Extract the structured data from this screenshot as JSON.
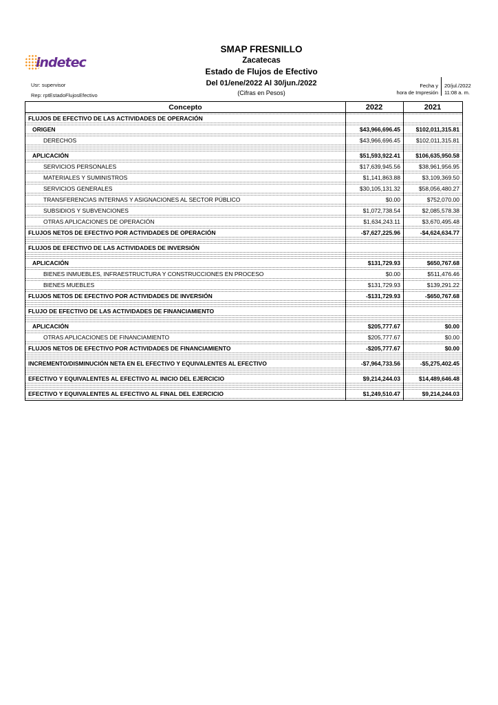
{
  "colors": {
    "logo_purple": "#662D91",
    "logo_orange": "#F7941D",
    "text": "#000000"
  },
  "logo": {
    "i": "i",
    "rest": "ndetec"
  },
  "header": {
    "usr": "Usr: supervisor",
    "rep": "Rep: rptEstadoFlujosEfectivo",
    "company": "SMAP FRESNILLO",
    "state": "Zacatecas",
    "report_title": "Estado de Flujos de Efectivo",
    "period": "Del 01/ene/2022 Al 30/jun./2022",
    "units": "(Cifras en Pesos)",
    "print_label_line1": "Fecha y",
    "print_label_line2": "hora de Impresión",
    "print_date": "20/jul./2022",
    "print_time": "11:08 a. m."
  },
  "table": {
    "col_concepto": "Concepto",
    "col_2022": "2022",
    "col_2021": "2021",
    "rows": [
      {
        "label": "FLUJOS DE EFECTIVO DE LAS ACTIVIDADES DE OPERACIÓN",
        "v2022": "",
        "v2021": "",
        "style": "section",
        "indent": 0
      },
      {
        "label": "ORIGEN",
        "v2022": "$43,966,696.45",
        "v2021": "$102,011,315.81",
        "style": "group",
        "indent": 1
      },
      {
        "label": "DERECHOS",
        "v2022": "$43,966,696.45",
        "v2021": "$102,011,315.81",
        "style": "item",
        "indent": 2
      },
      {
        "label": "",
        "v2022": "",
        "v2021": "",
        "style": "spacer",
        "indent": 0
      },
      {
        "label": "APLICACIÓN",
        "v2022": "$51,593,922.41",
        "v2021": "$106,635,950.58",
        "style": "group",
        "indent": 1
      },
      {
        "label": "SERVICIOS PERSONALES",
        "v2022": "$17,639,945.56",
        "v2021": "$38,961,956.95",
        "style": "item",
        "indent": 2
      },
      {
        "label": "MATERIALES Y SUMINISTROS",
        "v2022": "$1,141,863.88",
        "v2021": "$3,109,369.50",
        "style": "item",
        "indent": 2
      },
      {
        "label": "SERVICIOS GENERALES",
        "v2022": "$30,105,131.32",
        "v2021": "$58,056,480.27",
        "style": "item",
        "indent": 2
      },
      {
        "label": "TRANSFERENCIAS INTERNAS Y ASIGNACIONES AL SECTOR PÚBLICO",
        "v2022": "$0.00",
        "v2021": "$752,070.00",
        "style": "item",
        "indent": 2
      },
      {
        "label": "SUBSIDIOS Y SUBVENCIONES",
        "v2022": "$1,072,738.54",
        "v2021": "$2,085,578.38",
        "style": "item",
        "indent": 2
      },
      {
        "label": "OTRAS APLICACIONES DE OPERACIÓN",
        "v2022": "$1,634,243.11",
        "v2021": "$3,670,495.48",
        "style": "item",
        "indent": 2
      },
      {
        "label": "FLUJOS NETOS DE EFECTIVO POR ACTIVIDADES DE OPERACIÓN",
        "v2022": "-$7,627,225.96",
        "v2021": "-$4,624,634.77",
        "style": "total",
        "indent": 0
      },
      {
        "label": "",
        "v2022": "",
        "v2021": "",
        "style": "spacer",
        "indent": 0
      },
      {
        "label": "FLUJOS DE EFECTIVO DE LAS ACTIVIDADES DE INVERSIÓN",
        "v2022": "",
        "v2021": "",
        "style": "section",
        "indent": 0
      },
      {
        "label": "",
        "v2022": "",
        "v2021": "",
        "style": "spacer",
        "indent": 0
      },
      {
        "label": "APLICACIÓN",
        "v2022": "$131,729.93",
        "v2021": "$650,767.68",
        "style": "group",
        "indent": 1
      },
      {
        "label": "BIENES INMUEBLES, INFRAESTRUCTURA Y CONSTRUCCIONES EN PROCESO",
        "v2022": "$0.00",
        "v2021": "$511,476.46",
        "style": "item",
        "indent": 2
      },
      {
        "label": "BIENES MUEBLES",
        "v2022": "$131,729.93",
        "v2021": "$139,291.22",
        "style": "item",
        "indent": 2
      },
      {
        "label": "FLUJOS NETOS DE EFECTIVO POR ACTIVIDADES DE INVERSIÓN",
        "v2022": "-$131,729.93",
        "v2021": "-$650,767.68",
        "style": "total",
        "indent": 0
      },
      {
        "label": "",
        "v2022": "",
        "v2021": "",
        "style": "spacer",
        "indent": 0
      },
      {
        "label": "FLUJO DE EFECTIVO DE LAS ACTIVIDADES DE FINANCIAMIENTO",
        "v2022": "",
        "v2021": "",
        "style": "section",
        "indent": 0
      },
      {
        "label": "",
        "v2022": "",
        "v2021": "",
        "style": "spacer",
        "indent": 0
      },
      {
        "label": "APLICACIÓN",
        "v2022": "$205,777.67",
        "v2021": "$0.00",
        "style": "group",
        "indent": 1
      },
      {
        "label": "OTRAS APLICACIONES DE FINANCIAMIENTO",
        "v2022": "$205,777.67",
        "v2021": "$0.00",
        "style": "item",
        "indent": 2
      },
      {
        "label": "FLUJOS NETOS DE EFECTIVO POR ACTIVIDADES DE FINANCIAMIENTO",
        "v2022": "-$205,777.67",
        "v2021": "$0.00",
        "style": "total",
        "indent": 0
      },
      {
        "label": "",
        "v2022": "",
        "v2021": "",
        "style": "spacer",
        "indent": 0
      },
      {
        "label": "INCREMENTO/DISMINUCIÓN NETA EN EL EFECTIVO Y EQUIVALENTES AL EFECTIVO",
        "v2022": "-$7,964,733.56",
        "v2021": "-$5,275,402.45",
        "style": "total",
        "indent": 0
      },
      {
        "label": "",
        "v2022": "",
        "v2021": "",
        "style": "spacer",
        "indent": 0
      },
      {
        "label": "EFECTIVO Y EQUIVALENTES AL EFECTIVO AL INICIO DEL EJERCICIO",
        "v2022": "$9,214,244.03",
        "v2021": "$14,489,646.48",
        "style": "total",
        "indent": 0
      },
      {
        "label": "",
        "v2022": "",
        "v2021": "",
        "style": "spacer",
        "indent": 0
      },
      {
        "label": "EFECTIVO Y EQUIVALENTES AL EFECTIVO AL FINAL DEL EJERCICIO",
        "v2022": "$1,249,510.47",
        "v2021": "$9,214,244.03",
        "style": "total",
        "indent": 0
      }
    ]
  }
}
